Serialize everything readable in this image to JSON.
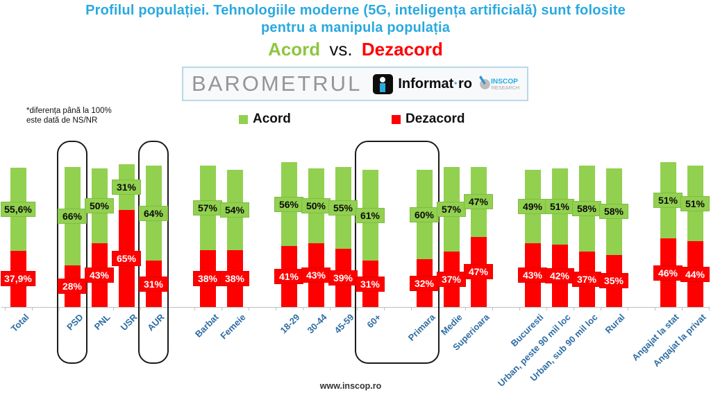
{
  "title": {
    "line1": "Profilul populației. Tehnologiile moderne (5G, inteligența artificială) sunt folosite",
    "line2": "pentru a manipula populația"
  },
  "subtitle": {
    "acord": "Acord",
    "vs": "vs.",
    "dezacord": "Dezacord"
  },
  "banner": {
    "barometrul": "BAROMETRUL",
    "informat_name": "Informat",
    "informat_dot": "·",
    "informat_tld": "ro",
    "inscop": "INSCOP",
    "research": "RESEARCH"
  },
  "note": {
    "line1": "*diferența până la 100%",
    "line2": "este dată de NS/NR"
  },
  "legend": {
    "acord": "Acord",
    "dezacord": "Dezacord"
  },
  "footer": {
    "url": "www.inscop.ro"
  },
  "chart_data": {
    "type": "bar",
    "stacked": true,
    "value_suffix": "%",
    "series": [
      {
        "name": "Acord",
        "color": "#92D050"
      },
      {
        "name": "Dezacord",
        "color": "#FF0000"
      }
    ],
    "groups": [
      [
        {
          "category": "Total",
          "acord": 55.6,
          "dezacord": 37.9,
          "acord_label": "55,6%",
          "dezacord_label": "37,9%"
        }
      ],
      [
        {
          "category": "PSD",
          "acord": 66,
          "dezacord": 28,
          "acord_label": "66%",
          "dezacord_label": "28%"
        },
        {
          "category": "PNL",
          "acord": 50,
          "dezacord": 43,
          "acord_label": "50%",
          "dezacord_label": "43%"
        },
        {
          "category": "USR",
          "acord": 31,
          "dezacord": 65,
          "acord_label": "31%",
          "dezacord_label": "65%"
        },
        {
          "category": "AUR",
          "acord": 64,
          "dezacord": 31,
          "acord_label": "64%",
          "dezacord_label": "31%"
        }
      ],
      [
        {
          "category": "Barbat",
          "acord": 57,
          "dezacord": 38,
          "acord_label": "57%",
          "dezacord_label": "38%"
        },
        {
          "category": "Femeie",
          "acord": 54,
          "dezacord": 38,
          "acord_label": "54%",
          "dezacord_label": "38%"
        }
      ],
      [
        {
          "category": "18-29",
          "acord": 56,
          "dezacord": 41,
          "acord_label": "56%",
          "dezacord_label": "41%"
        },
        {
          "category": "30-44",
          "acord": 50,
          "dezacord": 43,
          "acord_label": "50%",
          "dezacord_label": "43%"
        },
        {
          "category": "45-59",
          "acord": 55,
          "dezacord": 39,
          "acord_label": "55%",
          "dezacord_label": "39%"
        },
        {
          "category": "60+",
          "acord": 61,
          "dezacord": 31,
          "acord_label": "61%",
          "dezacord_label": "31%"
        }
      ],
      [
        {
          "category": "Primara",
          "acord": 60,
          "dezacord": 32,
          "acord_label": "60%",
          "dezacord_label": "32%"
        },
        {
          "category": "Medie",
          "acord": 57,
          "dezacord": 37,
          "acord_label": "57%",
          "dezacord_label": "37%"
        },
        {
          "category": "Superioara",
          "acord": 47,
          "dezacord": 47,
          "acord_label": "47%",
          "dezacord_label": "47%"
        }
      ],
      [
        {
          "category": "Bucuresti",
          "acord": 49,
          "dezacord": 43,
          "acord_label": "49%",
          "dezacord_label": "43%"
        },
        {
          "category": "Urban, peste 90 mil loc",
          "acord": 51,
          "dezacord": 42,
          "acord_label": "51%",
          "dezacord_label": "42%"
        },
        {
          "category": "Urban, sub 90 mil loc",
          "acord": 58,
          "dezacord": 37,
          "acord_label": "58%",
          "dezacord_label": "37%"
        },
        {
          "category": "Rural",
          "acord": 58,
          "dezacord": 35,
          "acord_label": "58%",
          "dezacord_label": "35%"
        }
      ],
      [
        {
          "category": "Angajat la stat",
          "acord": 51,
          "dezacord": 46,
          "acord_label": "51%",
          "dezacord_label": "46%"
        },
        {
          "category": "Angajat la privat",
          "acord": 51,
          "dezacord": 44,
          "acord_label": "51%",
          "dezacord_label": "44%"
        }
      ]
    ],
    "highlighted": [
      [
        "PSD"
      ],
      [
        "AUR"
      ],
      [
        "60+",
        "Primara"
      ]
    ]
  }
}
